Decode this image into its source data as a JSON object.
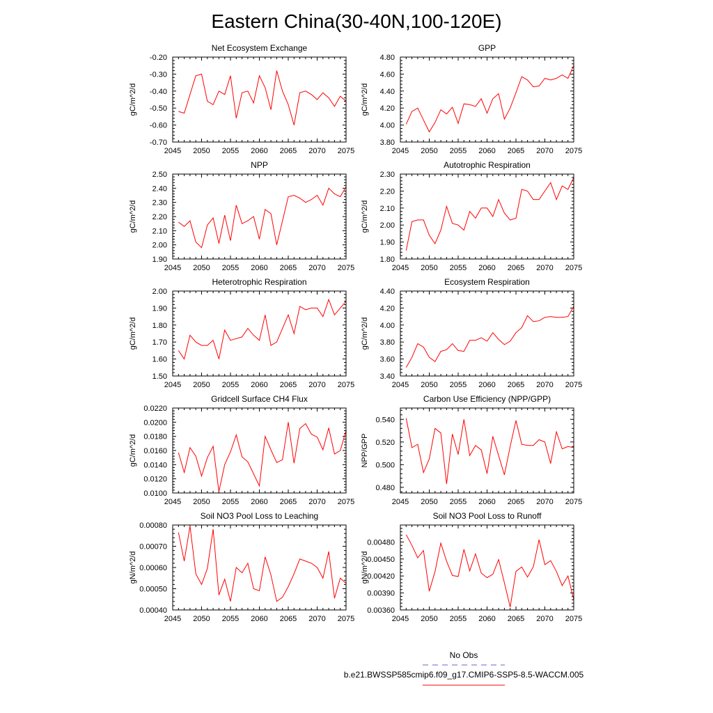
{
  "title": "Eastern China(30-40N,100-120E)",
  "legend": {
    "items": [
      {
        "label": "No Obs",
        "color": "#6666cc",
        "style": "dashed"
      },
      {
        "label": "b.e21.BWSSP585cmip6.f09_g17.CMIP6-SSP5-8.5-WACCM.005",
        "color": "#ff0000",
        "style": "solid"
      }
    ]
  },
  "chart_data": [
    {
      "type": "line",
      "title": "Net Ecosystem Exchange",
      "ylabel": "gC/m^2/d",
      "ylim": [
        -0.7,
        -0.2
      ],
      "yticks": [
        "-0.20",
        "-0.30",
        "-0.40",
        "-0.50",
        "-0.60",
        "-0.70"
      ],
      "xlim": [
        2045,
        2075
      ],
      "xticks": [
        "2045",
        "2050",
        "2055",
        "2060",
        "2065",
        "2070",
        "2075"
      ],
      "x": [
        2046,
        2047,
        2048,
        2049,
        2050,
        2051,
        2052,
        2053,
        2054,
        2055,
        2056,
        2057,
        2058,
        2059,
        2060,
        2061,
        2062,
        2063,
        2064,
        2065,
        2066,
        2067,
        2068,
        2069,
        2070,
        2071,
        2072,
        2073,
        2074,
        2075
      ],
      "series": [
        {
          "values": [
            -0.52,
            -0.53,
            -0.42,
            -0.31,
            -0.3,
            -0.46,
            -0.48,
            -0.4,
            -0.42,
            -0.31,
            -0.56,
            -0.41,
            -0.4,
            -0.47,
            -0.31,
            -0.38,
            -0.51,
            -0.28,
            -0.4,
            -0.48,
            -0.6,
            -0.41,
            -0.4,
            -0.42,
            -0.45,
            -0.41,
            -0.44,
            -0.49,
            -0.43,
            -0.46
          ],
          "color": "#ff0000"
        }
      ]
    },
    {
      "type": "line",
      "title": "GPP",
      "ylabel": "gC/m^2/d",
      "ylim": [
        3.8,
        4.8
      ],
      "yticks": [
        "4.80",
        "4.60",
        "4.40",
        "4.20",
        "4.00",
        "3.80"
      ],
      "xlim": [
        2045,
        2075
      ],
      "xticks": [
        "2045",
        "2050",
        "2055",
        "2060",
        "2065",
        "2070",
        "2075"
      ],
      "x": [
        2046,
        2047,
        2048,
        2049,
        2050,
        2051,
        2052,
        2053,
        2054,
        2055,
        2056,
        2057,
        2058,
        2059,
        2060,
        2061,
        2062,
        2063,
        2064,
        2065,
        2066,
        2067,
        2068,
        2069,
        2070,
        2071,
        2072,
        2073,
        2074,
        2075
      ],
      "series": [
        {
          "values": [
            4.01,
            4.16,
            4.2,
            4.06,
            3.92,
            4.03,
            4.18,
            4.13,
            4.21,
            4.02,
            4.25,
            4.24,
            4.22,
            4.31,
            4.14,
            4.31,
            4.37,
            4.07,
            4.2,
            4.38,
            4.57,
            4.53,
            4.45,
            4.46,
            4.55,
            4.53,
            4.55,
            4.59,
            4.55,
            4.7
          ],
          "color": "#ff0000"
        }
      ]
    },
    {
      "type": "line",
      "title": "NPP",
      "ylabel": "gC/m^2/d",
      "ylim": [
        1.9,
        2.5
      ],
      "yticks": [
        "2.50",
        "2.40",
        "2.30",
        "2.20",
        "2.10",
        "2.00",
        "1.90"
      ],
      "xlim": [
        2045,
        2075
      ],
      "xticks": [
        "2045",
        "2050",
        "2055",
        "2060",
        "2065",
        "2070",
        "2075"
      ],
      "x": [
        2046,
        2047,
        2048,
        2049,
        2050,
        2051,
        2052,
        2053,
        2054,
        2055,
        2056,
        2057,
        2058,
        2059,
        2060,
        2061,
        2062,
        2063,
        2064,
        2065,
        2066,
        2067,
        2068,
        2069,
        2070,
        2071,
        2072,
        2073,
        2074,
        2075
      ],
      "series": [
        {
          "values": [
            2.16,
            2.13,
            2.17,
            2.02,
            1.98,
            2.14,
            2.19,
            2.01,
            2.21,
            2.03,
            2.28,
            2.15,
            2.17,
            2.2,
            2.04,
            2.25,
            2.22,
            2.0,
            2.17,
            2.34,
            2.35,
            2.33,
            2.3,
            2.32,
            2.35,
            2.28,
            2.4,
            2.36,
            2.34,
            2.41
          ],
          "color": "#ff0000"
        }
      ]
    },
    {
      "type": "line",
      "title": "Autotrophic Respiration",
      "ylabel": "gC/m^2/d",
      "ylim": [
        1.8,
        2.3
      ],
      "yticks": [
        "2.30",
        "2.20",
        "2.10",
        "2.00",
        "1.90",
        "1.80"
      ],
      "xlim": [
        2045,
        2075
      ],
      "xticks": [
        "2045",
        "2050",
        "2055",
        "2060",
        "2065",
        "2070",
        "2075"
      ],
      "x": [
        2046,
        2047,
        2048,
        2049,
        2050,
        2051,
        2052,
        2053,
        2054,
        2055,
        2056,
        2057,
        2058,
        2059,
        2060,
        2061,
        2062,
        2063,
        2064,
        2065,
        2066,
        2067,
        2068,
        2069,
        2070,
        2071,
        2072,
        2073,
        2074,
        2075
      ],
      "series": [
        {
          "values": [
            1.85,
            2.02,
            2.03,
            2.03,
            1.94,
            1.89,
            1.97,
            2.11,
            2.01,
            2.0,
            1.97,
            2.08,
            2.04,
            2.1,
            2.1,
            2.05,
            2.15,
            2.07,
            2.03,
            2.04,
            2.21,
            2.2,
            2.15,
            2.15,
            2.2,
            2.25,
            2.15,
            2.23,
            2.21,
            2.28
          ],
          "color": "#ff0000"
        }
      ]
    },
    {
      "type": "line",
      "title": "Heterotrophic Respiration",
      "ylabel": "gC/m^2/d",
      "ylim": [
        1.5,
        2.0
      ],
      "yticks": [
        "2.00",
        "1.90",
        "1.80",
        "1.70",
        "1.60",
        "1.50"
      ],
      "xlim": [
        2045,
        2075
      ],
      "xticks": [
        "2045",
        "2050",
        "2055",
        "2060",
        "2065",
        "2070",
        "2075"
      ],
      "x": [
        2046,
        2047,
        2048,
        2049,
        2050,
        2051,
        2052,
        2053,
        2054,
        2055,
        2056,
        2057,
        2058,
        2059,
        2060,
        2061,
        2062,
        2063,
        2064,
        2065,
        2066,
        2067,
        2068,
        2069,
        2070,
        2071,
        2072,
        2073,
        2074,
        2075
      ],
      "series": [
        {
          "values": [
            1.65,
            1.6,
            1.74,
            1.7,
            1.68,
            1.68,
            1.71,
            1.6,
            1.77,
            1.71,
            1.72,
            1.73,
            1.78,
            1.74,
            1.71,
            1.86,
            1.68,
            1.7,
            1.78,
            1.86,
            1.75,
            1.91,
            1.89,
            1.9,
            1.9,
            1.85,
            1.95,
            1.86,
            1.9,
            1.94
          ],
          "color": "#ff0000"
        }
      ]
    },
    {
      "type": "line",
      "title": "Ecosystem Respiration",
      "ylabel": "gC/m^2/d",
      "ylim": [
        3.4,
        4.4
      ],
      "yticks": [
        "4.40",
        "4.20",
        "4.00",
        "3.80",
        "3.60",
        "3.40"
      ],
      "xlim": [
        2045,
        2075
      ],
      "xticks": [
        "2045",
        "2050",
        "2055",
        "2060",
        "2065",
        "2070",
        "2075"
      ],
      "x": [
        2046,
        2047,
        2048,
        2049,
        2050,
        2051,
        2052,
        2053,
        2054,
        2055,
        2056,
        2057,
        2058,
        2059,
        2060,
        2061,
        2062,
        2063,
        2064,
        2065,
        2066,
        2067,
        2068,
        2069,
        2070,
        2071,
        2072,
        2073,
        2074,
        2075
      ],
      "series": [
        {
          "values": [
            3.5,
            3.62,
            3.78,
            3.74,
            3.62,
            3.57,
            3.69,
            3.71,
            3.78,
            3.7,
            3.69,
            3.82,
            3.82,
            3.85,
            3.81,
            3.91,
            3.83,
            3.77,
            3.81,
            3.91,
            3.97,
            4.11,
            4.04,
            4.05,
            4.09,
            4.1,
            4.09,
            4.09,
            4.1,
            4.22
          ],
          "color": "#ff0000"
        }
      ]
    },
    {
      "type": "line",
      "title": "Gridcell Surface CH4 Flux",
      "ylabel": "gC/m^2/d",
      "ylim": [
        0.01,
        0.022
      ],
      "yticks": [
        "0.0220",
        "0.0200",
        "0.0180",
        "0.0160",
        "0.0140",
        "0.0120",
        "0.0100"
      ],
      "xlim": [
        2045,
        2075
      ],
      "xticks": [
        "2045",
        "2050",
        "2055",
        "2060",
        "2065",
        "2070",
        "2075"
      ],
      "x": [
        2046,
        2047,
        2048,
        2049,
        2050,
        2051,
        2052,
        2053,
        2054,
        2055,
        2056,
        2057,
        2058,
        2059,
        2060,
        2061,
        2062,
        2063,
        2064,
        2065,
        2066,
        2067,
        2068,
        2069,
        2070,
        2071,
        2072,
        2073,
        2074,
        2075
      ],
      "series": [
        {
          "values": [
            0.0157,
            0.0129,
            0.0164,
            0.0152,
            0.0124,
            0.015,
            0.0166,
            0.0102,
            0.014,
            0.0158,
            0.0182,
            0.0151,
            0.0144,
            0.0127,
            0.011,
            0.018,
            0.0161,
            0.0143,
            0.0147,
            0.02,
            0.0142,
            0.0191,
            0.0198,
            0.0183,
            0.0179,
            0.0161,
            0.0192,
            0.0155,
            0.016,
            0.0188
          ],
          "color": "#ff0000"
        }
      ]
    },
    {
      "type": "line",
      "title": "Carbon Use Efficiency (NPP/GPP)",
      "ylabel": "NPP/GPP",
      "ylim": [
        0.475,
        0.55
      ],
      "yticks": [
        "0.540",
        "0.520",
        "0.500",
        "0.480"
      ],
      "xlim": [
        2045,
        2075
      ],
      "xticks": [
        "2045",
        "2050",
        "2055",
        "2060",
        "2065",
        "2070",
        "2075"
      ],
      "x": [
        2046,
        2047,
        2048,
        2049,
        2050,
        2051,
        2052,
        2053,
        2054,
        2055,
        2056,
        2057,
        2058,
        2059,
        2060,
        2061,
        2062,
        2063,
        2064,
        2065,
        2066,
        2067,
        2068,
        2069,
        2070,
        2071,
        2072,
        2073,
        2074,
        2075
      ],
      "series": [
        {
          "values": [
            0.541,
            0.515,
            0.518,
            0.493,
            0.505,
            0.532,
            0.528,
            0.483,
            0.527,
            0.509,
            0.54,
            0.508,
            0.517,
            0.513,
            0.492,
            0.525,
            0.508,
            0.491,
            0.516,
            0.539,
            0.518,
            0.517,
            0.517,
            0.522,
            0.52,
            0.501,
            0.529,
            0.514,
            0.516,
            0.515
          ],
          "color": "#ff0000"
        }
      ]
    },
    {
      "type": "line",
      "title": "Soil NO3 Pool Loss to Leaching",
      "ylabel": "gN/m^2/d",
      "ylim": [
        0.0004,
        0.0008
      ],
      "yticks": [
        "0.00080",
        "0.00070",
        "0.00060",
        "0.00050",
        "0.00040"
      ],
      "xlim": [
        2045,
        2075
      ],
      "xticks": [
        "2045",
        "2050",
        "2055",
        "2060",
        "2065",
        "2070",
        "2075"
      ],
      "x": [
        2046,
        2047,
        2048,
        2049,
        2050,
        2051,
        2052,
        2053,
        2054,
        2055,
        2056,
        2057,
        2058,
        2059,
        2060,
        2061,
        2062,
        2063,
        2064,
        2065,
        2066,
        2067,
        2068,
        2069,
        2070,
        2071,
        2072,
        2073,
        2074,
        2075
      ],
      "series": [
        {
          "values": [
            0.000765,
            0.00063,
            0.000795,
            0.00057,
            0.00052,
            0.000595,
            0.00078,
            0.00047,
            0.000545,
            0.00044,
            0.0006,
            0.000575,
            0.00062,
            0.0005,
            0.00049,
            0.00065,
            0.000565,
            0.00044,
            0.00046,
            0.00051,
            0.00057,
            0.00064,
            0.00063,
            0.00062,
            0.0006,
            0.00055,
            0.000675,
            0.000455,
            0.00055,
            0.000525
          ],
          "color": "#ff0000"
        }
      ]
    },
    {
      "type": "line",
      "title": "Soil NO3 Pool Loss to Runoff",
      "ylabel": "gN/m^2/d",
      "ylim": [
        0.0036,
        0.0051
      ],
      "yticks": [
        "0.00480",
        "0.00450",
        "0.00420",
        "0.00390",
        "0.00360"
      ],
      "xlim": [
        2045,
        2075
      ],
      "xticks": [
        "2045",
        "2050",
        "2055",
        "2060",
        "2065",
        "2070",
        "2075"
      ],
      "x": [
        2046,
        2047,
        2048,
        2049,
        2050,
        2051,
        2052,
        2053,
        2054,
        2055,
        2056,
        2057,
        2058,
        2059,
        2060,
        2061,
        2062,
        2063,
        2064,
        2065,
        2066,
        2067,
        2068,
        2069,
        2070,
        2071,
        2072,
        2073,
        2074,
        2075
      ],
      "series": [
        {
          "values": [
            0.00493,
            0.00474,
            0.00452,
            0.00465,
            0.00393,
            0.00428,
            0.00478,
            0.00446,
            0.00421,
            0.00419,
            0.00467,
            0.00429,
            0.00459,
            0.00425,
            0.00417,
            0.00423,
            0.00449,
            0.00408,
            0.00365,
            0.00428,
            0.00436,
            0.00418,
            0.00436,
            0.00484,
            0.0044,
            0.00447,
            0.00428,
            0.00403,
            0.0042,
            0.00378
          ],
          "color": "#ff0000"
        }
      ]
    }
  ]
}
